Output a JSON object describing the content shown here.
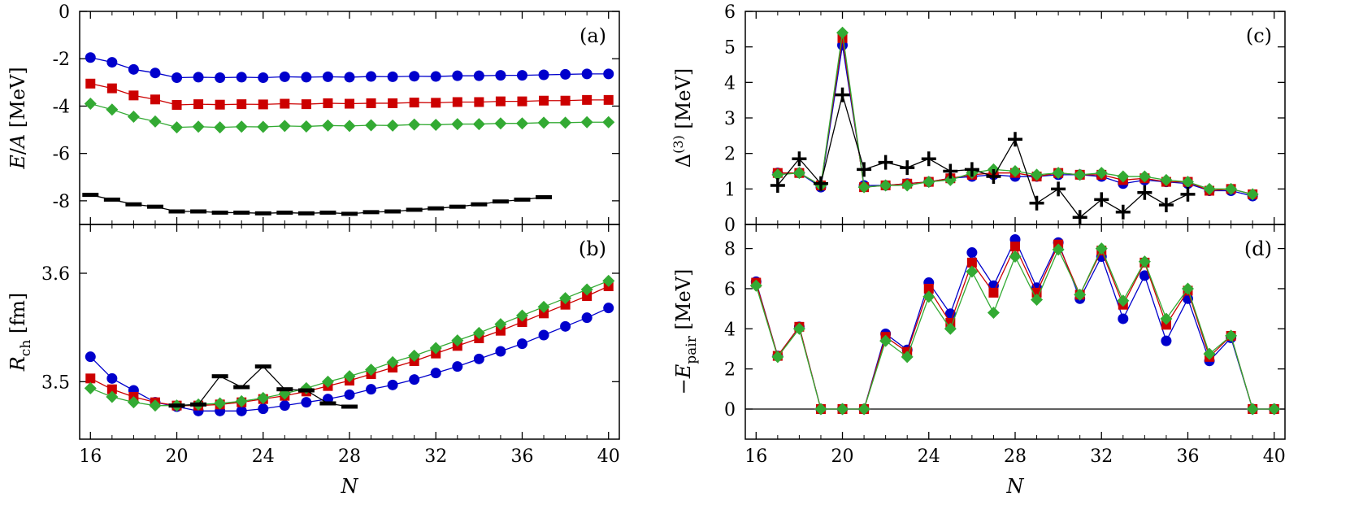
{
  "chart_data": [
    {
      "id": "a",
      "type": "line",
      "panel_label": "(a)",
      "ylabel": "E/A [MeV]",
      "ylim": [
        -9,
        0
      ],
      "yticks": [
        0,
        -2,
        -4,
        -6,
        -8
      ],
      "xlim": [
        15.5,
        40.5
      ],
      "xticks": [
        16,
        20,
        24,
        28,
        32,
        36,
        40
      ],
      "show_x_ticklabels": false,
      "series": [
        {
          "marker": "circle",
          "color": "#0000cc",
          "x": [
            16,
            17,
            18,
            19,
            20,
            21,
            22,
            23,
            24,
            25,
            26,
            27,
            28,
            29,
            30,
            31,
            32,
            33,
            34,
            35,
            36,
            37,
            38,
            39,
            40
          ],
          "y": [
            -1.95,
            -2.15,
            -2.45,
            -2.6,
            -2.8,
            -2.78,
            -2.8,
            -2.78,
            -2.8,
            -2.76,
            -2.78,
            -2.76,
            -2.78,
            -2.75,
            -2.76,
            -2.74,
            -2.75,
            -2.72,
            -2.72,
            -2.7,
            -2.7,
            -2.68,
            -2.66,
            -2.64,
            -2.64
          ]
        },
        {
          "marker": "square",
          "color": "#cc0000",
          "x": [
            16,
            17,
            18,
            19,
            20,
            21,
            22,
            23,
            24,
            25,
            26,
            27,
            28,
            29,
            30,
            31,
            32,
            33,
            34,
            35,
            36,
            37,
            38,
            39,
            40
          ],
          "y": [
            -3.05,
            -3.25,
            -3.55,
            -3.72,
            -3.95,
            -3.92,
            -3.94,
            -3.92,
            -3.93,
            -3.9,
            -3.92,
            -3.88,
            -3.9,
            -3.88,
            -3.88,
            -3.85,
            -3.86,
            -3.83,
            -3.83,
            -3.8,
            -3.8,
            -3.77,
            -3.77,
            -3.74,
            -3.74
          ]
        },
        {
          "marker": "diamond",
          "color": "#33aa33",
          "x": [
            16,
            17,
            18,
            19,
            20,
            21,
            22,
            23,
            24,
            25,
            26,
            27,
            28,
            29,
            30,
            31,
            32,
            33,
            34,
            35,
            36,
            37,
            38,
            39,
            40
          ],
          "y": [
            -3.9,
            -4.15,
            -4.45,
            -4.65,
            -4.9,
            -4.87,
            -4.9,
            -4.87,
            -4.88,
            -4.84,
            -4.86,
            -4.82,
            -4.84,
            -4.81,
            -4.82,
            -4.78,
            -4.79,
            -4.76,
            -4.76,
            -4.73,
            -4.73,
            -4.7,
            -4.7,
            -4.68,
            -4.68
          ]
        },
        {
          "marker": "dash",
          "color": "#000000",
          "x": [
            16,
            17,
            18,
            19,
            20,
            21,
            22,
            23,
            24,
            25,
            26,
            27,
            28,
            29,
            30,
            31,
            32,
            33,
            34,
            35,
            36,
            37
          ],
          "y": [
            -7.75,
            -7.95,
            -8.15,
            -8.25,
            -8.45,
            -8.45,
            -8.5,
            -8.5,
            -8.53,
            -8.5,
            -8.53,
            -8.5,
            -8.55,
            -8.48,
            -8.45,
            -8.38,
            -8.32,
            -8.25,
            -8.15,
            -8.03,
            -7.95,
            -7.85
          ]
        }
      ]
    },
    {
      "id": "b",
      "type": "line",
      "panel_label": "(b)",
      "ylabel": "R_ch [fm]",
      "ylim": [
        3.447,
        3.645
      ],
      "yticks": [
        3.5,
        3.6
      ],
      "ytick_labels": [
        "3.5",
        "3.6"
      ],
      "xlim": [
        15.5,
        40.5
      ],
      "xticks": [
        16,
        20,
        24,
        28,
        32,
        36,
        40
      ],
      "show_x_ticklabels": true,
      "xlabel": "N",
      "series": [
        {
          "marker": "circle",
          "color": "#0000cc",
          "x": [
            16,
            17,
            18,
            19,
            20,
            21,
            22,
            23,
            24,
            25,
            26,
            27,
            28,
            29,
            30,
            31,
            32,
            33,
            34,
            35,
            36,
            37,
            38,
            39,
            40
          ],
          "y": [
            3.523,
            3.503,
            3.492,
            3.481,
            3.477,
            3.473,
            3.473,
            3.473,
            3.475,
            3.478,
            3.481,
            3.484,
            3.488,
            3.493,
            3.497,
            3.502,
            3.508,
            3.514,
            3.521,
            3.528,
            3.535,
            3.543,
            3.551,
            3.559,
            3.568
          ]
        },
        {
          "marker": "square",
          "color": "#cc0000",
          "x": [
            16,
            17,
            18,
            19,
            20,
            21,
            22,
            23,
            24,
            25,
            26,
            27,
            28,
            29,
            30,
            31,
            32,
            33,
            34,
            35,
            36,
            37,
            38,
            39,
            40
          ],
          "y": [
            3.503,
            3.493,
            3.486,
            3.481,
            3.478,
            3.478,
            3.479,
            3.481,
            3.484,
            3.487,
            3.491,
            3.496,
            3.501,
            3.507,
            3.513,
            3.519,
            3.526,
            3.533,
            3.54,
            3.547,
            3.555,
            3.563,
            3.571,
            3.579,
            3.588
          ]
        },
        {
          "marker": "diamond",
          "color": "#33aa33",
          "x": [
            16,
            17,
            18,
            19,
            20,
            21,
            22,
            23,
            24,
            25,
            26,
            27,
            28,
            29,
            30,
            31,
            32,
            33,
            34,
            35,
            36,
            37,
            38,
            39,
            40
          ],
          "y": [
            3.494,
            3.486,
            3.481,
            3.478,
            3.478,
            3.479,
            3.48,
            3.482,
            3.485,
            3.489,
            3.494,
            3.5,
            3.505,
            3.511,
            3.518,
            3.524,
            3.531,
            3.538,
            3.545,
            3.553,
            3.561,
            3.569,
            3.577,
            3.585,
            3.593
          ]
        },
        {
          "marker": "dash",
          "color": "#000000",
          "x": [
            20,
            21,
            22,
            23,
            24,
            25,
            26,
            27,
            28
          ],
          "y": [
            3.478,
            3.479,
            3.505,
            3.495,
            3.514,
            3.493,
            3.492,
            3.48,
            3.477
          ]
        }
      ]
    },
    {
      "id": "c",
      "type": "line",
      "panel_label": "(c)",
      "ylabel": "Δ(3) [MeV]",
      "ylim": [
        0,
        6
      ],
      "yticks": [
        0,
        1,
        2,
        3,
        4,
        5,
        6
      ],
      "xlim": [
        15.5,
        40.5
      ],
      "xticks": [
        16,
        20,
        24,
        28,
        32,
        36,
        40
      ],
      "show_x_ticklabels": false,
      "series": [
        {
          "marker": "circle",
          "color": "#0000cc",
          "x": [
            17,
            18,
            19,
            20,
            21,
            22,
            23,
            24,
            25,
            26,
            27,
            28,
            29,
            30,
            31,
            32,
            33,
            34,
            35,
            36,
            37,
            38,
            39
          ],
          "y": [
            1.45,
            1.45,
            1.05,
            5.05,
            1.1,
            1.1,
            1.15,
            1.2,
            1.3,
            1.35,
            1.4,
            1.35,
            1.35,
            1.4,
            1.4,
            1.35,
            1.15,
            1.25,
            1.2,
            1.15,
            0.95,
            0.95,
            0.8
          ]
        },
        {
          "marker": "square",
          "color": "#cc0000",
          "x": [
            17,
            18,
            19,
            20,
            21,
            22,
            23,
            24,
            25,
            26,
            27,
            28,
            29,
            30,
            31,
            32,
            33,
            34,
            35,
            36,
            37,
            38,
            39
          ],
          "y": [
            1.45,
            1.45,
            1.1,
            5.25,
            1.05,
            1.1,
            1.15,
            1.2,
            1.3,
            1.4,
            1.45,
            1.45,
            1.35,
            1.45,
            1.4,
            1.4,
            1.25,
            1.3,
            1.2,
            1.2,
            0.95,
            1.0,
            0.85
          ]
        },
        {
          "marker": "diamond",
          "color": "#33aa33",
          "x": [
            17,
            18,
            19,
            20,
            21,
            22,
            23,
            24,
            25,
            26,
            27,
            28,
            29,
            30,
            31,
            32,
            33,
            34,
            35,
            36,
            37,
            38,
            39
          ],
          "y": [
            1.4,
            1.45,
            1.1,
            5.4,
            1.05,
            1.1,
            1.1,
            1.2,
            1.25,
            1.45,
            1.55,
            1.5,
            1.4,
            1.45,
            1.4,
            1.45,
            1.35,
            1.35,
            1.25,
            1.2,
            1.0,
            1.0,
            0.85
          ]
        },
        {
          "marker": "plus",
          "color": "#000000",
          "x": [
            17,
            18,
            19,
            20,
            21,
            22,
            23,
            24,
            25,
            26,
            27,
            28,
            29,
            30,
            31,
            32,
            33,
            34,
            35,
            36
          ],
          "y": [
            1.1,
            1.85,
            1.15,
            3.65,
            1.55,
            1.75,
            1.6,
            1.85,
            1.5,
            1.55,
            1.35,
            2.4,
            0.6,
            1.0,
            0.2,
            0.7,
            0.35,
            0.9,
            0.55,
            0.85
          ]
        }
      ]
    },
    {
      "id": "d",
      "type": "line",
      "panel_label": "(d)",
      "ylabel": "−E_pair [MeV]",
      "ylim": [
        -1.5,
        9.2
      ],
      "yticks": [
        0,
        2,
        4,
        6,
        8
      ],
      "xlim": [
        15.5,
        40.5
      ],
      "xticks": [
        16,
        20,
        24,
        28,
        32,
        36,
        40
      ],
      "show_x_ticklabels": true,
      "xlabel": "N",
      "zero_line": true,
      "series": [
        {
          "marker": "circle",
          "color": "#0000cc",
          "x": [
            16,
            17,
            18,
            19,
            20,
            21,
            22,
            23,
            24,
            25,
            26,
            27,
            28,
            29,
            30,
            31,
            32,
            33,
            34,
            35,
            36,
            37,
            38,
            39,
            40
          ],
          "y": [
            6.35,
            2.65,
            4.1,
            0,
            0,
            0,
            3.75,
            2.95,
            6.3,
            4.75,
            7.8,
            6.15,
            8.45,
            6.05,
            8.3,
            5.5,
            7.6,
            4.5,
            6.65,
            3.4,
            5.5,
            2.4,
            3.55,
            0,
            0
          ]
        },
        {
          "marker": "square",
          "color": "#cc0000",
          "x": [
            16,
            17,
            18,
            19,
            20,
            21,
            22,
            23,
            24,
            25,
            26,
            27,
            28,
            29,
            30,
            31,
            32,
            33,
            34,
            35,
            36,
            37,
            38,
            39,
            40
          ],
          "y": [
            6.3,
            2.65,
            4.1,
            0,
            0,
            0,
            3.6,
            2.85,
            6.0,
            4.3,
            7.3,
            5.8,
            8.1,
            5.8,
            8.2,
            5.7,
            7.9,
            5.2,
            7.3,
            4.2,
            5.9,
            2.6,
            3.65,
            0,
            0
          ]
        },
        {
          "marker": "diamond",
          "color": "#33aa33",
          "x": [
            16,
            17,
            18,
            19,
            20,
            21,
            22,
            23,
            24,
            25,
            26,
            27,
            28,
            29,
            30,
            31,
            32,
            33,
            34,
            35,
            36,
            37,
            38,
            39,
            40
          ],
          "y": [
            6.15,
            2.6,
            4.0,
            0,
            0,
            0,
            3.4,
            2.6,
            5.6,
            4.0,
            6.85,
            4.8,
            7.6,
            5.45,
            7.95,
            5.7,
            8.0,
            5.4,
            7.35,
            4.5,
            6.0,
            2.75,
            3.65,
            0,
            0
          ]
        }
      ]
    }
  ]
}
